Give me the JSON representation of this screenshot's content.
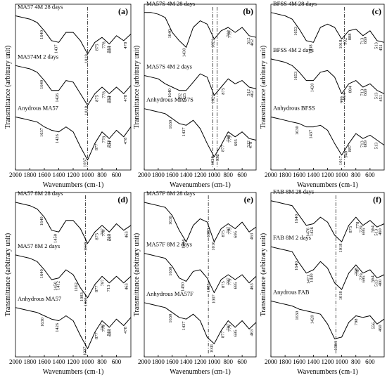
{
  "chart_data": [
    {
      "type": "line",
      "panel_label": "(a)",
      "y_label": "Transmittance (arbitrary unit)",
      "x_label": "Wavenumbers (cm-1)",
      "xlim": [
        2000,
        400
      ],
      "ylim": [
        0,
        10
      ],
      "xticks": [
        2000,
        1800,
        1600,
        1400,
        1200,
        1000,
        800,
        600
      ],
      "vlines": [
        1000
      ],
      "x": [
        2000,
        1900,
        1800,
        1700,
        1600,
        1500,
        1400,
        1300,
        1200,
        1100,
        1000,
        900,
        800,
        700,
        600,
        500,
        400
      ],
      "series": [
        {
          "name": "MA57 4M 28 days",
          "color": "#000000",
          "values": [
            9.3,
            9.2,
            9.1,
            8.9,
            8.4,
            7.8,
            7.7,
            8.3,
            8.3,
            7.8,
            7.0,
            7.7,
            8.0,
            7.6,
            8.1,
            7.8,
            8.2
          ],
          "peaks": [
            1640,
            1437,
            1019,
            875,
            778,
            713,
            693,
            478
          ]
        },
        {
          "name": "MA574M 2 days",
          "color": "#000000",
          "values": [
            6.3,
            6.2,
            6.1,
            5.9,
            5.4,
            4.8,
            4.8,
            5.4,
            5.3,
            4.6,
            3.9,
            4.6,
            5.0,
            4.6,
            5.0,
            4.6,
            5.1
          ],
          "peaks": [
            1640,
            1426,
            1018,
            875,
            778,
            713,
            694,
            478
          ]
        },
        {
          "name": "Anydrous MA57",
          "color": "#000000",
          "values": [
            3.2,
            3.1,
            3.0,
            2.9,
            2.6,
            2.4,
            2.3,
            2.6,
            2.3,
            1.4,
            0.6,
            1.6,
            2.3,
            1.9,
            2.4,
            2.0,
            2.6
          ],
          "peaks": [
            1637,
            1426,
            1037,
            877,
            778,
            713,
            694,
            478
          ]
        }
      ]
    },
    {
      "type": "line",
      "panel_label": "(b)",
      "y_label": "Transmittance (arbitrary unit)",
      "x_label": "Wavenumbers (cm-1)",
      "xlim": [
        2000,
        400
      ],
      "ylim": [
        0,
        10
      ],
      "xticks": [
        2000,
        1800,
        1600,
        1400,
        1200,
        1000,
        800,
        600
      ],
      "vlines": [
        1021,
        960
      ],
      "x": [
        2000,
        1900,
        1800,
        1700,
        1600,
        1500,
        1400,
        1300,
        1200,
        1100,
        1000,
        900,
        800,
        700,
        600,
        500,
        400
      ],
      "series": [
        {
          "name": "MA57S 4M 28 days",
          "color": "#000000",
          "values": [
            9.5,
            9.5,
            9.4,
            9.2,
            8.3,
            7.8,
            7.4,
            8.6,
            9.0,
            8.8,
            7.9,
            8.4,
            8.6,
            8.3,
            8.6,
            8.1,
            8.0
          ],
          "peaks": [
            1640,
            1430,
            1021,
            798,
            779,
            512,
            462
          ]
        },
        {
          "name": "MA57S 4M 2 days",
          "color": "#000000",
          "values": [
            5.7,
            5.6,
            5.5,
            5.2,
            5.0,
            4.8,
            4.8,
            5.3,
            5.8,
            5.6,
            4.5,
            5.0,
            5.5,
            5.2,
            5.4,
            5.0,
            4.9
          ],
          "peaks": [
            1640,
            1492,
            1425,
            1021,
            875,
            512,
            462
          ]
        },
        {
          "name": "Anhydrous MA57S",
          "color": "#000000",
          "values": [
            3.7,
            3.6,
            3.5,
            3.4,
            3.1,
            2.8,
            2.7,
            3.0,
            2.5,
            1.6,
            0.8,
            1.5,
            2.3,
            2.0,
            2.3,
            1.9,
            1.8
          ],
          "peaks": [
            1630,
            1437,
            1026,
            952,
            877,
            798,
            779,
            693,
            512,
            478
          ]
        }
      ]
    },
    {
      "type": "line",
      "panel_label": "(c)",
      "y_label": "Transmittance (arbitrary unit)",
      "x_label": "Wavenumbers (cm-1)",
      "xlim": [
        2000,
        400
      ],
      "ylim": [
        0,
        10
      ],
      "xticks": [
        2000,
        1800,
        1600,
        1400,
        1200,
        1000,
        800,
        600
      ],
      "vlines": [
        960
      ],
      "x": [
        2000,
        1900,
        1800,
        1700,
        1600,
        1500,
        1400,
        1300,
        1200,
        1100,
        1000,
        900,
        800,
        700,
        600,
        500,
        400
      ],
      "series": [
        {
          "name": "BFSS 4M 28 days",
          "color": "#000000",
          "values": [
            9.5,
            9.4,
            9.3,
            9.1,
            8.5,
            7.8,
            7.7,
            8.6,
            8.8,
            8.6,
            7.9,
            8.4,
            8.5,
            8.1,
            8.4,
            7.8,
            7.7
          ],
          "peaks": [
            1653,
            1438,
            1018,
            952,
            888,
            713,
            669,
            513,
            451
          ]
        },
        {
          "name": "BFSS 4M 2 days",
          "color": "#000000",
          "values": [
            6.7,
            6.6,
            6.5,
            6.3,
            5.9,
            5.4,
            5.4,
            5.9,
            6.0,
            5.6,
            4.6,
            5.2,
            5.4,
            5.0,
            5.2,
            4.8,
            4.6
          ],
          "peaks": [
            1653,
            1420,
            999,
            964,
            884,
            713,
            669,
            513,
            451
          ]
        },
        {
          "name": "Anhydrous BFSS",
          "color": "#000000",
          "values": [
            3.2,
            3.1,
            3.0,
            2.9,
            2.8,
            2.6,
            2.6,
            2.7,
            2.4,
            1.6,
            0.9,
            1.6,
            2.2,
            1.9,
            2.1,
            1.8,
            1.5
          ],
          "peaks": [
            1630,
            1437,
            1017,
            940,
            887,
            713,
            669,
            513
          ]
        }
      ]
    },
    {
      "type": "line",
      "panel_label": "(d)",
      "y_label": "Transmittance (arbitrary unit)",
      "x_label": "Wavenumbers (cm-1)",
      "xlim": [
        2000,
        400
      ],
      "ylim": [
        0,
        10
      ],
      "xticks": [
        2000,
        1800,
        1600,
        1400,
        1200,
        1000,
        800,
        600
      ],
      "vlines": [
        1030
      ],
      "x": [
        2000,
        1900,
        1800,
        1700,
        1600,
        1500,
        1400,
        1300,
        1200,
        1100,
        1000,
        900,
        800,
        700,
        600,
        500,
        400
      ],
      "series": [
        {
          "name": "MA57 8M 28 days",
          "color": "#000000",
          "values": [
            9.4,
            9.3,
            9.2,
            9.0,
            8.5,
            7.7,
            7.6,
            8.3,
            8.3,
            7.8,
            6.9,
            7.6,
            8.0,
            7.6,
            8.1,
            7.7,
            8.0
          ],
          "peaks": [
            1640,
            1450,
            1030,
            875,
            797,
            779,
            713,
            693,
            463
          ]
        },
        {
          "name": "MA57 8M 2 days",
          "color": "#000000",
          "values": [
            6.2,
            6.1,
            6.0,
            5.8,
            5.3,
            4.7,
            4.8,
            5.3,
            5.0,
            4.2,
            3.6,
            4.4,
            4.9,
            4.5,
            4.9,
            4.5,
            4.9
          ],
          "peaks": [
            1640,
            1450,
            1412,
            1162,
            1083,
            1030,
            877,
            797,
            713,
            463
          ]
        },
        {
          "name": "Anhydrous MA57",
          "color": "#000000",
          "values": [
            3.0,
            2.9,
            2.8,
            2.7,
            2.5,
            2.3,
            2.2,
            2.5,
            2.2,
            1.3,
            0.5,
            1.5,
            2.2,
            1.8,
            2.3,
            1.9,
            2.4
          ],
          "peaks": [
            1630,
            1426,
            1037,
            877,
            797,
            779,
            713,
            693,
            478
          ]
        }
      ]
    },
    {
      "type": "line",
      "panel_label": "(e)",
      "y_label": "Transmittance (arbitrary unit)",
      "x_label": "Wavenumbers (cm-1)",
      "xlim": [
        2000,
        400
      ],
      "ylim": [
        0,
        10
      ],
      "xticks": [
        2000,
        1800,
        1600,
        1400,
        1200,
        1000,
        800,
        600
      ],
      "vlines": [
        1083
      ],
      "x": [
        2000,
        1900,
        1800,
        1700,
        1600,
        1500,
        1400,
        1300,
        1200,
        1100,
        1000,
        900,
        800,
        700,
        600,
        500,
        400
      ],
      "series": [
        {
          "name": "MA57F 8M 28 days",
          "color": "#000000",
          "values": [
            9.4,
            9.3,
            9.2,
            9.1,
            8.6,
            7.7,
            7.0,
            8.0,
            8.4,
            8.2,
            7.0,
            7.8,
            8.1,
            7.8,
            8.2,
            7.6,
            7.9
          ],
          "peaks": [
            1630,
            1444,
            1083,
            1016,
            875,
            797,
            779,
            695,
            463
          ]
        },
        {
          "name": "MA57F 8M 2 days",
          "color": "#000000",
          "values": [
            6.3,
            6.2,
            6.1,
            6.0,
            5.5,
            4.8,
            4.6,
            5.2,
            5.3,
            4.8,
            3.9,
            4.7,
            5.0,
            4.7,
            5.0,
            4.5,
            4.9
          ],
          "peaks": [
            1630,
            1450,
            1083,
            1007,
            875,
            797,
            779,
            695,
            463
          ]
        },
        {
          "name": "Anhydrous MA57F",
          "color": "#000000",
          "values": [
            3.3,
            3.2,
            3.1,
            3.0,
            2.7,
            2.4,
            2.3,
            2.6,
            2.2,
            1.2,
            0.8,
            1.6,
            2.2,
            1.8,
            2.2,
            1.7,
            2.1
          ],
          "peaks": [
            1630,
            1437,
            1041,
            877,
            797,
            779,
            695,
            463
          ]
        }
      ]
    },
    {
      "type": "line",
      "panel_label": "(f)",
      "y_label": "Transmittance (arbitrary unit)",
      "x_label": "Wavenumbers (cm-1)",
      "xlim": [
        2000,
        400
      ],
      "ylim": [
        0,
        10
      ],
      "xticks": [
        2000,
        1800,
        1600,
        1400,
        1200,
        1000,
        800,
        600
      ],
      "vlines": [
        1083
      ],
      "x": [
        2000,
        1900,
        1800,
        1700,
        1600,
        1500,
        1400,
        1300,
        1200,
        1100,
        1000,
        900,
        800,
        700,
        600,
        500,
        400
      ],
      "series": [
        {
          "name": "FAB 8M 28 days",
          "color": "#000000",
          "values": [
            9.5,
            9.4,
            9.3,
            9.2,
            8.6,
            8.0,
            8.1,
            8.5,
            8.2,
            7.4,
            7.0,
            8.0,
            8.5,
            8.0,
            8.3,
            7.9,
            8.1
          ],
          "peaks": [
            1640,
            1476,
            1426,
            1018,
            875,
            778,
            729,
            695,
            564,
            513,
            460
          ]
        },
        {
          "name": "FAB 8M 2 days",
          "color": "#000000",
          "values": [
            6.7,
            6.6,
            6.5,
            6.4,
            5.7,
            5.1,
            5.3,
            5.8,
            5.4,
            4.5,
            4.1,
            5.1,
            5.6,
            5.1,
            5.3,
            4.8,
            5.0
          ],
          "peaks": [
            1640,
            1471,
            1430,
            1018,
            798,
            778,
            729,
            695,
            564,
            513,
            460
          ]
        },
        {
          "name": "Anydrous FAB",
          "color": "#000000",
          "values": [
            3.4,
            3.3,
            3.2,
            3.1,
            2.9,
            2.8,
            2.7,
            2.6,
            2.0,
            1.1,
            1.2,
            2.1,
            2.5,
            2.4,
            2.5,
            2.0,
            2.3
          ],
          "peaks": [
            1630,
            1420,
            1084,
            798,
            556,
            460
          ]
        }
      ]
    }
  ]
}
